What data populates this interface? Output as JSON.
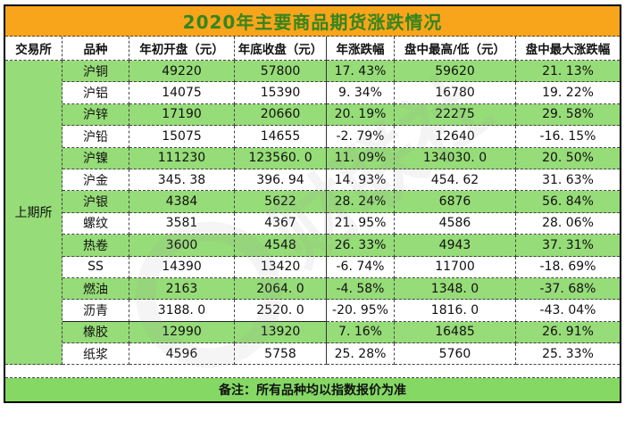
{
  "colors": {
    "title_bg": "#F9A51B",
    "title_text": "#35851F",
    "row_green": "#96DC78",
    "footer_bg": "#85D864",
    "grid_border": "#444444",
    "outer_border": "#000000"
  },
  "watermark": {
    "text": "财联社"
  },
  "chart_data": {
    "type": "table",
    "title": "2020年主要商品期货涨跌情况",
    "columns": [
      "交易所",
      "品种",
      "年初开盘（元）",
      "年底收盘（元）",
      "年涨跌幅",
      "盘中最高/低（元）",
      "盘中最大涨跌幅"
    ],
    "exchange_merged_cell": "上期所",
    "rows": [
      [
        "沪铜",
        "49220",
        "57800",
        "17. 43%",
        "59620",
        "21. 13%"
      ],
      [
        "沪铝",
        "14075",
        "15390",
        "9. 34%",
        "16780",
        "19. 22%"
      ],
      [
        "沪锌",
        "17190",
        "20660",
        "20. 19%",
        "22275",
        "29. 58%"
      ],
      [
        "沪铅",
        "15075",
        "14655",
        "-2. 79%",
        "12640",
        "-16. 15%"
      ],
      [
        "沪镍",
        "111230",
        "123560. 0",
        "11. 09%",
        "134030. 0",
        "20. 50%"
      ],
      [
        "沪金",
        "345. 38",
        "396. 94",
        "14. 93%",
        "454. 62",
        "31. 63%"
      ],
      [
        "沪银",
        "4384",
        "5622",
        "28. 24%",
        "6876",
        "56. 84%"
      ],
      [
        "螺纹",
        "3581",
        "4367",
        "21. 95%",
        "4586",
        "28. 06%"
      ],
      [
        "热卷",
        "3600",
        "4548",
        "26. 33%",
        "4943",
        "37. 31%"
      ],
      [
        "SS",
        "14390",
        "13420",
        "-6. 74%",
        "11700",
        "-18. 69%"
      ],
      [
        "燃油",
        "2163",
        "2064. 0",
        "-4. 58%",
        "1348. 0",
        "-37. 68%"
      ],
      [
        "沥青",
        "3188. 0",
        "2520. 0",
        "-20. 95%",
        "1816. 0",
        "-43. 04%"
      ],
      [
        "橡胶",
        "12990",
        "13920",
        "7. 16%",
        "16485",
        "26. 91%"
      ],
      [
        "纸浆",
        "4596",
        "5758",
        "25. 28%",
        "5760",
        "25. 33%"
      ]
    ],
    "footnote": "备注：所有品种均以指数报价为准",
    "layout": {
      "striped": "alternating green starting row 1",
      "legend": "none",
      "grid": "dashed"
    }
  }
}
